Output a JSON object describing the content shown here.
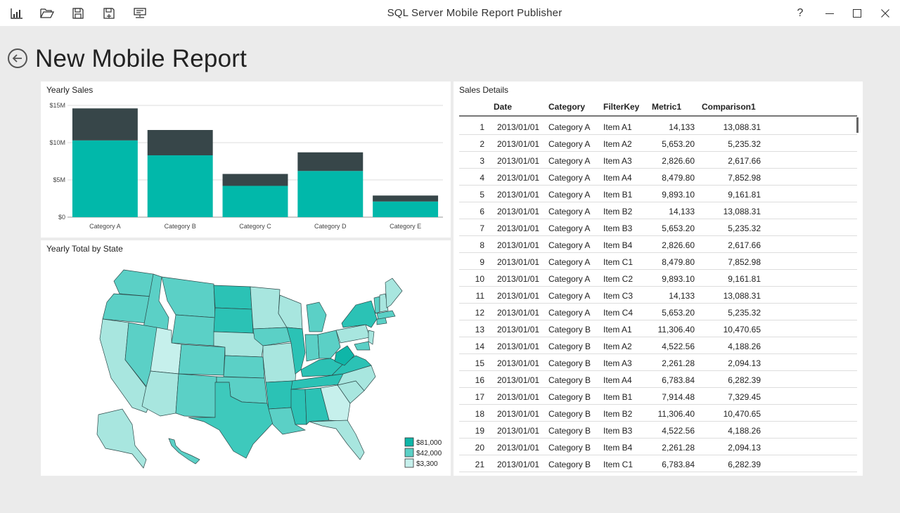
{
  "app": {
    "title": "SQL Server Mobile Report Publisher",
    "help_label": "?"
  },
  "toolbar": {
    "icons": [
      "report-icon",
      "open-folder-icon",
      "save-icon",
      "save-as-icon",
      "publish-server-icon"
    ]
  },
  "header": {
    "title": "New Mobile Report"
  },
  "yearly_sales": {
    "title": "Yearly Sales"
  },
  "map": {
    "title": "Yearly Total by State",
    "legend": [
      {
        "label": "$81,000",
        "color": "#0fb6a8"
      },
      {
        "label": "$42,000",
        "color": "#5bd0c6"
      },
      {
        "label": "$3,300",
        "color": "#c6f0ec"
      }
    ]
  },
  "sales_details": {
    "title": "Sales Details",
    "columns": [
      "Date",
      "Category",
      "FilterKey",
      "Metric1",
      "Comparison1"
    ],
    "rows": [
      [
        "1",
        "2013/01/01",
        "Category A",
        "Item A1",
        "14,133",
        "13,088.31"
      ],
      [
        "2",
        "2013/01/01",
        "Category A",
        "Item A2",
        "5,653.20",
        "5,235.32"
      ],
      [
        "3",
        "2013/01/01",
        "Category A",
        "Item A3",
        "2,826.60",
        "2,617.66"
      ],
      [
        "4",
        "2013/01/01",
        "Category A",
        "Item A4",
        "8,479.80",
        "7,852.98"
      ],
      [
        "5",
        "2013/01/01",
        "Category A",
        "Item B1",
        "9,893.10",
        "9,161.81"
      ],
      [
        "6",
        "2013/01/01",
        "Category A",
        "Item B2",
        "14,133",
        "13,088.31"
      ],
      [
        "7",
        "2013/01/01",
        "Category A",
        "Item B3",
        "5,653.20",
        "5,235.32"
      ],
      [
        "8",
        "2013/01/01",
        "Category A",
        "Item B4",
        "2,826.60",
        "2,617.66"
      ],
      [
        "9",
        "2013/01/01",
        "Category A",
        "Item C1",
        "8,479.80",
        "7,852.98"
      ],
      [
        "10",
        "2013/01/01",
        "Category A",
        "Item C2",
        "9,893.10",
        "9,161.81"
      ],
      [
        "11",
        "2013/01/01",
        "Category A",
        "Item C3",
        "14,133",
        "13,088.31"
      ],
      [
        "12",
        "2013/01/01",
        "Category A",
        "Item C4",
        "5,653.20",
        "5,235.32"
      ],
      [
        "13",
        "2013/01/01",
        "Category B",
        "Item A1",
        "11,306.40",
        "10,470.65"
      ],
      [
        "14",
        "2013/01/01",
        "Category B",
        "Item A2",
        "4,522.56",
        "4,188.26"
      ],
      [
        "15",
        "2013/01/01",
        "Category B",
        "Item A3",
        "2,261.28",
        "2,094.13"
      ],
      [
        "16",
        "2013/01/01",
        "Category B",
        "Item A4",
        "6,783.84",
        "6,282.39"
      ],
      [
        "17",
        "2013/01/01",
        "Category B",
        "Item B1",
        "7,914.48",
        "7,329.45"
      ],
      [
        "18",
        "2013/01/01",
        "Category B",
        "Item B2",
        "11,306.40",
        "10,470.65"
      ],
      [
        "19",
        "2013/01/01",
        "Category B",
        "Item B3",
        "4,522.56",
        "4,188.26"
      ],
      [
        "20",
        "2013/01/01",
        "Category B",
        "Item B4",
        "2,261.28",
        "2,094.13"
      ],
      [
        "21",
        "2013/01/01",
        "Category B",
        "Item C1",
        "6,783.84",
        "6,282.39"
      ]
    ]
  },
  "chart_data": {
    "type": "bar",
    "stacked": true,
    "categories": [
      "Category A",
      "Category B",
      "Category C",
      "Category D",
      "Category E"
    ],
    "series": [
      {
        "values": [
          10.3,
          8.3,
          4.2,
          6.2,
          2.1
        ],
        "color": "#01b8aa"
      },
      {
        "values": [
          4.3,
          3.4,
          1.6,
          2.5,
          0.8
        ],
        "color": "#374649"
      }
    ],
    "ylim": [
      0,
      15
    ],
    "yticks": [
      0,
      5,
      10,
      15
    ],
    "ytick_labels": [
      "$0",
      "$5M",
      "$10M",
      "$15M"
    ],
    "grid": true
  }
}
